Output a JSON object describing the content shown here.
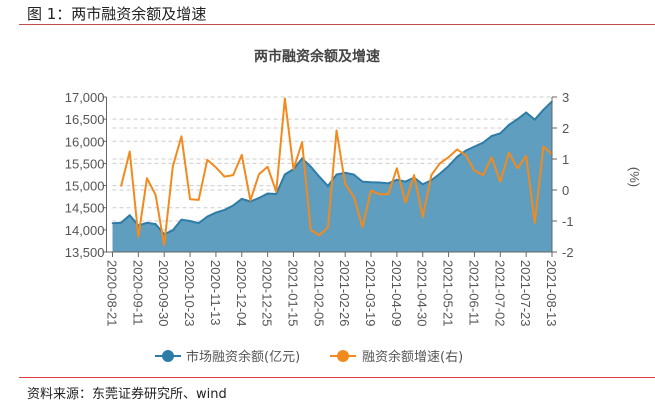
{
  "figure_title": "图 1：两市融资余额及增速",
  "source": "资料来源：东莞证券研究所、wind",
  "chart_data": {
    "type": "line",
    "title": "两市融资余额及增速",
    "x_labels": [
      "2020-08-21",
      "2020-09-11",
      "2020-09-30",
      "2020-10-23",
      "2020-11-13",
      "2020-12-04",
      "2020-12-25",
      "2021-01-15",
      "2021-02-05",
      "2021-02-26",
      "2021-03-19",
      "2021-04-09",
      "2021-04-30",
      "2021-05-21",
      "2021-06-11",
      "2021-07-02",
      "2021-07-23",
      "2021-08-13"
    ],
    "x_label_every": 3,
    "left_axis": {
      "ylim": [
        13500,
        17000
      ],
      "ticks": [
        "13,500",
        "14,000",
        "14,500",
        "15,000",
        "15,500",
        "16,000",
        "16,500",
        "17,000"
      ]
    },
    "right_axis": {
      "label": "(%)",
      "ylim": [
        -2,
        3
      ],
      "ticks": [
        "-2",
        "-1",
        "0",
        "1",
        "2",
        "3"
      ]
    },
    "grid": true,
    "legend_position": "bottom",
    "series": [
      {
        "name": "市场融资余额(亿元)",
        "type": "area",
        "axis": "left",
        "color": "#2e7ca8",
        "fill": "#5f9ebf",
        "values": [
          14150,
          14160,
          14330,
          14100,
          14160,
          14130,
          13900,
          13990,
          14230,
          14200,
          14150,
          14300,
          14390,
          14450,
          14550,
          14700,
          14640,
          14720,
          14820,
          14810,
          15250,
          15370,
          15610,
          15430,
          15200,
          14990,
          15250,
          15290,
          15250,
          15090,
          15075,
          15070,
          15050,
          15130,
          15090,
          15180,
          15030,
          15120,
          15270,
          15440,
          15650,
          15790,
          15880,
          15970,
          16120,
          16180,
          16370,
          16500,
          16650,
          16490,
          16710,
          16900
        ]
      },
      {
        "name": "融资余额增速(右)",
        "type": "line",
        "axis": "right",
        "color": "#f28a1e",
        "values": [
          null,
          0.13,
          1.24,
          -1.51,
          0.38,
          -0.16,
          -1.78,
          0.76,
          1.73,
          -0.3,
          -0.32,
          0.97,
          0.73,
          0.43,
          0.48,
          1.13,
          -0.34,
          0.51,
          0.75,
          -0.06,
          2.95,
          0.67,
          1.54,
          -1.29,
          -1.46,
          -1.21,
          1.92,
          0.19,
          -0.22,
          -1.19,
          -0.02,
          -0.14,
          -0.13,
          0.7,
          -0.41,
          0.48,
          -0.87,
          0.48,
          0.86,
          1.06,
          1.31,
          1.12,
          0.62,
          0.48,
          1.05,
          0.27,
          1.2,
          0.7,
          1.1,
          -1.06,
          1.4,
          1.16
        ]
      }
    ]
  }
}
